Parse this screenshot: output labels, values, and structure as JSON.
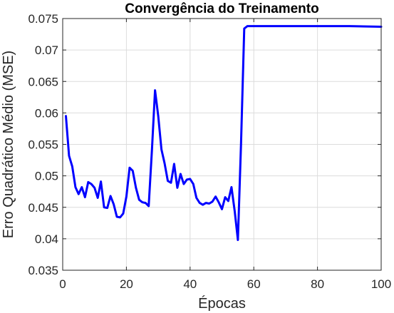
{
  "chart_data": {
    "type": "line",
    "title": "Convergência do Treinamento",
    "xlabel": "Épocas",
    "ylabel": "Erro Quadrático Médio (MSE)",
    "xlim": [
      0,
      100
    ],
    "ylim": [
      0.035,
      0.075
    ],
    "xticks": [
      0,
      20,
      40,
      60,
      80,
      100
    ],
    "xtick_labels": [
      "0",
      "20",
      "40",
      "60",
      "80",
      "100"
    ],
    "yticks": [
      0.035,
      0.04,
      0.045,
      0.05,
      0.055,
      0.06,
      0.065,
      0.07,
      0.075
    ],
    "ytick_labels": [
      "0.035",
      "0.04",
      "0.045",
      "0.05",
      "0.055",
      "0.06",
      "0.065",
      "0.07",
      "0.075"
    ],
    "grid": true,
    "series_color": "#0000ff",
    "series": [
      {
        "x": [
          1,
          2,
          3,
          4,
          5,
          6,
          7,
          8,
          9,
          10,
          11,
          12,
          13,
          14,
          15,
          16,
          17,
          18,
          19,
          20,
          21,
          22,
          23,
          24,
          25,
          26,
          27,
          28,
          29,
          30,
          31,
          32,
          33,
          34,
          35,
          36,
          37,
          38,
          39,
          40,
          41,
          42,
          43,
          44,
          45,
          46,
          47,
          48,
          49,
          50,
          51,
          52,
          53,
          54,
          55,
          56,
          57,
          58,
          59,
          60,
          70,
          80,
          90,
          100
        ],
        "y": [
          0.0595,
          0.0532,
          0.0515,
          0.0482,
          0.0471,
          0.0482,
          0.0466,
          0.049,
          0.0487,
          0.0481,
          0.0465,
          0.0491,
          0.045,
          0.0449,
          0.0468,
          0.0455,
          0.0435,
          0.0434,
          0.044,
          0.0467,
          0.0513,
          0.0508,
          0.0481,
          0.0462,
          0.0458,
          0.0457,
          0.0452,
          0.054,
          0.0636,
          0.0595,
          0.0542,
          0.052,
          0.0492,
          0.0489,
          0.0519,
          0.0481,
          0.0503,
          0.0487,
          0.0494,
          0.0495,
          0.0487,
          0.0465,
          0.0457,
          0.0454,
          0.0457,
          0.0456,
          0.0459,
          0.0467,
          0.0458,
          0.0447,
          0.0466,
          0.046,
          0.0482,
          0.0444,
          0.0398,
          0.0551,
          0.0734,
          0.0738,
          0.0738,
          0.0738,
          0.0738,
          0.0738,
          0.0738,
          0.0737
        ]
      }
    ]
  }
}
